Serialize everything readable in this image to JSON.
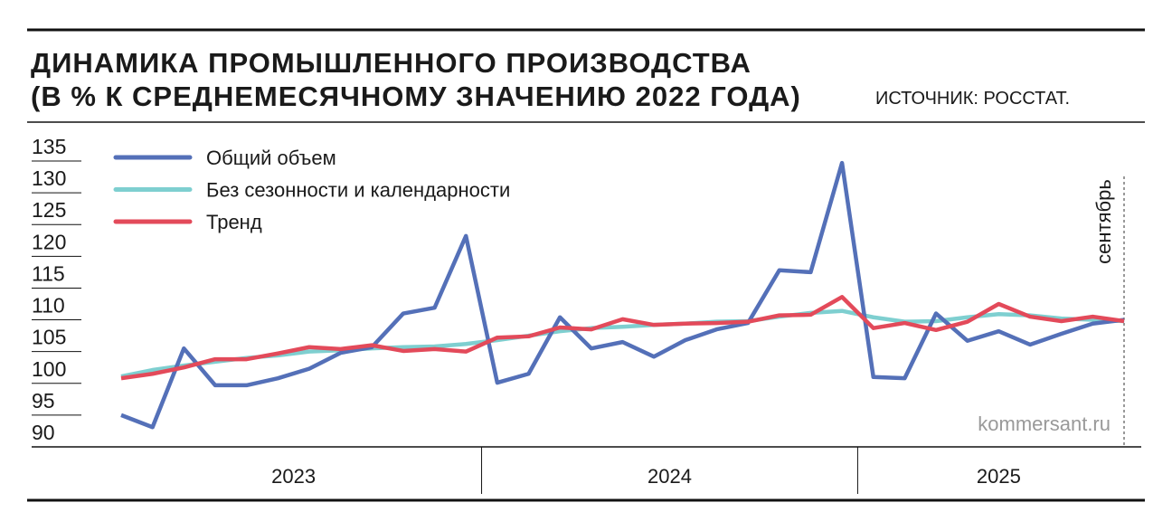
{
  "chart_data": {
    "type": "line",
    "title_line1": "ДИНАМИКА ПРОМЫШЛЕННОГО ПРОИЗВОДСТВА",
    "title_line2": "(В % К СРЕДНЕМЕСЯЧНОМУ ЗНАЧЕНИЮ 2022 ГОДА)",
    "source": "ИСТОЧНИК: РОССТАТ.",
    "annotation": "сентябрь",
    "watermark": "kommersant.ru",
    "categories": [
      null,
      null,
      null,
      null,
      null,
      null,
      null,
      null,
      null,
      null,
      null,
      null,
      null,
      null,
      null,
      null,
      null,
      null,
      null,
      null,
      null,
      null,
      null,
      null,
      null,
      null,
      null,
      null,
      null,
      null,
      null,
      null,
      null
    ],
    "year_groups": [
      {
        "label": "2023",
        "count": 12
      },
      {
        "label": "2024",
        "count": 12
      },
      {
        "label": "2025",
        "count": 9
      }
    ],
    "ylim": [
      90,
      135
    ],
    "yticks": [
      90,
      95,
      100,
      105,
      110,
      115,
      120,
      125,
      130,
      135
    ],
    "series": [
      {
        "name": "Общий объем",
        "color": "#5470b8",
        "values": [
          95,
          93.1,
          105.5,
          99.7,
          99.7,
          100.8,
          102.3,
          104.8,
          105.7,
          111,
          111.9,
          123.2,
          100.1,
          101.5,
          110.4,
          105.5,
          106.5,
          104.2,
          106.8,
          108.5,
          109.5,
          117.8,
          117.5,
          134.7,
          101,
          100.8,
          111,
          106.7,
          108.2,
          106.1,
          107.8,
          109.4,
          110
        ]
      },
      {
        "name": "Без сезонности и календарности",
        "color": "#7ecfd0",
        "values": [
          101.1,
          102.1,
          102.8,
          103.4,
          104,
          104.4,
          105,
          105.2,
          105.5,
          105.7,
          105.8,
          106.2,
          106.8,
          107.5,
          108.2,
          108.7,
          108.9,
          109.2,
          109.4,
          109.7,
          109.8,
          110.5,
          111.1,
          111.4,
          110.4,
          109.7,
          109.8,
          110.4,
          110.9,
          110.7,
          110.2,
          110,
          109.8
        ]
      },
      {
        "name": "Тренд",
        "color": "#e34a5a",
        "values": [
          100.8,
          101.5,
          102.5,
          103.8,
          103.8,
          104.7,
          105.7,
          105.4,
          106,
          105.1,
          105.4,
          105,
          107.2,
          107.4,
          108.8,
          108.5,
          110.1,
          109.2,
          109.4,
          109.5,
          109.7,
          110.7,
          110.8,
          113.6,
          108.7,
          109.5,
          108.4,
          109.7,
          112.5,
          110.5,
          109.8,
          110.5,
          109.8
        ]
      }
    ]
  }
}
